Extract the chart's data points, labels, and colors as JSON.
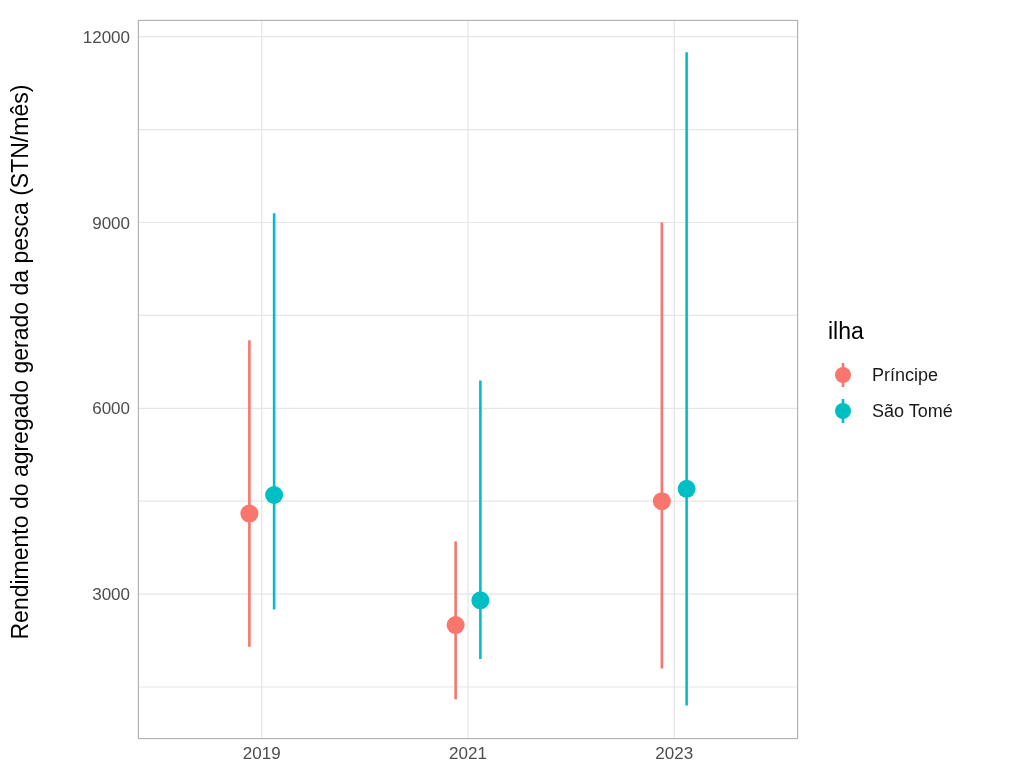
{
  "chart_data": {
    "type": "scatter",
    "ylabel": "Rendimento do agregado gerado da pesca (STN/mês)",
    "legend_title": "ilha",
    "categories": [
      "2019",
      "2021",
      "2023"
    ],
    "series": [
      {
        "name": "Príncipe",
        "color": "#f8766d",
        "values": [
          4300,
          2500,
          4500
        ],
        "errors": [
          [
            2150,
            7100
          ],
          [
            1300,
            3850
          ],
          [
            1800,
            9000
          ]
        ]
      },
      {
        "name": "São Tomé",
        "color": "#00bfc4",
        "values": [
          4600,
          2900,
          4700
        ],
        "errors": [
          [
            2750,
            9150
          ],
          [
            1950,
            6450
          ],
          [
            1200,
            11750
          ]
        ]
      }
    ],
    "ylim": [
      660,
      12270
    ],
    "yticks": [
      {
        "value": 1500,
        "label": null
      },
      3000,
      {
        "value": 4500,
        "label": null
      },
      6000,
      {
        "value": 7500,
        "label": null
      },
      9000,
      {
        "value": 10500,
        "label": null
      },
      12000
    ],
    "grid": true,
    "legend": "right",
    "marker": "circle"
  }
}
